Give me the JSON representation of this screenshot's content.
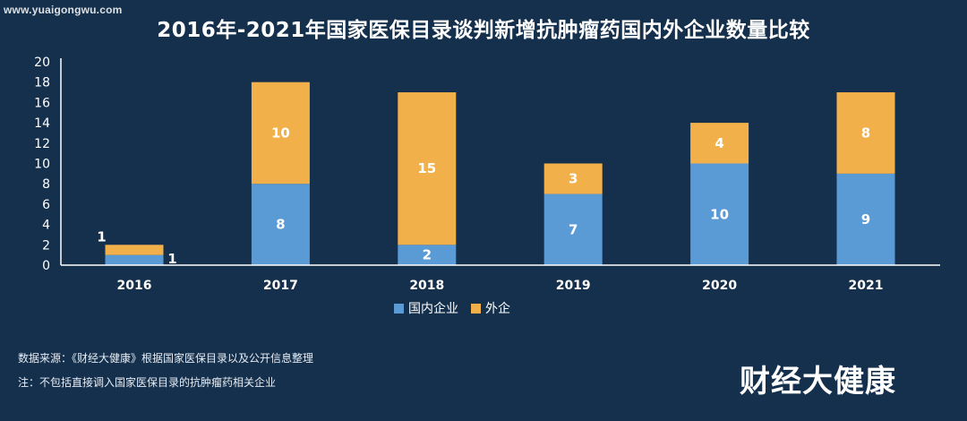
{
  "watermark": "www.yuaigongwu.com",
  "source": "数据来源：《财经大健康》根据国家医保目录以及公开信息整理",
  "note": "注：不包括直接调入国家医保目录的抗肿瘤药相关企业",
  "logo": "财经大健康",
  "colors": {
    "background": "#15304c",
    "domestic": "#5b9bd5",
    "foreign": "#f2b04a"
  },
  "chart_data": {
    "type": "bar",
    "stacked": true,
    "title": "2016年-2021年国家医保目录谈判新增抗肿瘤药国内外企业数量比较",
    "xlabel": "",
    "ylabel": "",
    "categories": [
      "2016",
      "2017",
      "2018",
      "2019",
      "2020",
      "2021"
    ],
    "series": [
      {
        "name": "国内企业",
        "values": [
          1,
          8,
          2,
          7,
          10,
          9
        ]
      },
      {
        "name": "外企",
        "values": [
          1,
          10,
          15,
          3,
          4,
          8
        ]
      }
    ],
    "ylim": [
      0,
      20
    ],
    "yticks": [
      "0",
      "2",
      "4",
      "6",
      "8",
      "10",
      "12",
      "14",
      "16",
      "18",
      "20"
    ],
    "grid": false,
    "legend": "bottom-center"
  }
}
